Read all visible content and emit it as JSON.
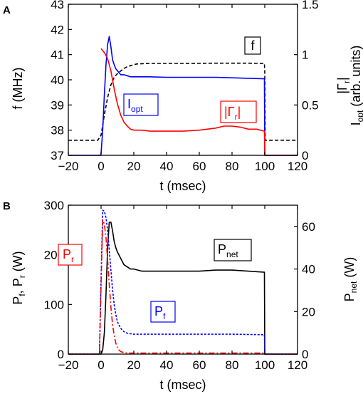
{
  "chart_data": [
    {
      "type": "line",
      "panel_label": "A",
      "xlabel": "t (msec)",
      "ylabel_left": "f (MHz)",
      "ylabel_right": "|Γr|  Iopt (arb. units)",
      "xlim": [
        -20,
        120
      ],
      "ylim_left": [
        37,
        43
      ],
      "ylim_right": [
        0,
        1.5
      ],
      "x_ticks": [
        -20,
        0,
        20,
        40,
        60,
        80,
        100,
        120
      ],
      "y_left_ticks": [
        37,
        38,
        39,
        40,
        41,
        42,
        43
      ],
      "y_right_ticks": [
        0,
        0.5,
        1,
        1.5
      ],
      "grid": false,
      "legend_boxes": [
        {
          "text": "f",
          "color": "#000000",
          "series": "f"
        },
        {
          "text": "Iopt",
          "main": "I",
          "sub": "opt",
          "color": "#0000ff",
          "series": "Iopt"
        },
        {
          "text": "|Γr|",
          "main": "|Γ",
          "sub": "r",
          "tail": "|",
          "color": "#ff0000",
          "series": "Gamma"
        }
      ],
      "series": [
        {
          "key": "f",
          "axis": "left",
          "color": "#000000",
          "style": "dashed",
          "x": [
            -20,
            -2,
            0,
            2,
            4,
            6,
            8,
            10,
            12,
            14,
            16,
            18,
            20,
            22,
            30,
            50,
            70,
            90,
            99.8,
            100,
            100.2,
            120
          ],
          "y": [
            37.6,
            37.6,
            37.8,
            38.6,
            39.3,
            39.8,
            40.1,
            40.25,
            40.35,
            40.45,
            40.52,
            40.56,
            40.6,
            40.63,
            40.65,
            40.65,
            40.66,
            40.66,
            40.65,
            40.3,
            37.6,
            37.6
          ]
        },
        {
          "key": "Iopt",
          "axis": "right",
          "color": "#0000ff",
          "style": "solid",
          "x": [
            -20,
            -0.2,
            0,
            1,
            2,
            3,
            4,
            5,
            6,
            7,
            8,
            9,
            10,
            12,
            14,
            16,
            18,
            20,
            25,
            30,
            40,
            50,
            60,
            70,
            80,
            90,
            99.8,
            100,
            120
          ],
          "y": [
            0,
            0,
            0.02,
            0.25,
            0.6,
            0.9,
            1.1,
            1.18,
            1.08,
            0.95,
            0.9,
            0.86,
            0.84,
            0.8,
            0.8,
            0.79,
            0.78,
            0.78,
            0.78,
            0.78,
            0.775,
            0.775,
            0.775,
            0.775,
            0.77,
            0.765,
            0.76,
            0,
            0
          ]
        },
        {
          "key": "Gamma",
          "axis": "right",
          "color": "#ff0000",
          "style": "solid",
          "x": [
            0,
            2,
            4,
            6,
            8,
            10,
            12,
            14,
            16,
            18,
            20,
            25,
            30,
            40,
            50,
            60,
            70,
            75,
            80,
            85,
            90,
            95,
            99.8,
            100,
            120
          ],
          "y": [
            1.06,
            1.02,
            0.96,
            0.84,
            0.66,
            0.51,
            0.4,
            0.33,
            0.29,
            0.26,
            0.25,
            0.25,
            0.24,
            0.24,
            0.24,
            0.25,
            0.27,
            0.29,
            0.29,
            0.28,
            0.26,
            0.26,
            0.24,
            0,
            0
          ]
        }
      ]
    },
    {
      "type": "line",
      "panel_label": "B",
      "xlabel": "t (msec)",
      "ylabel_left": "Pf, Pr (W)",
      "ylabel_right": "Pnet (W)",
      "xlim": [
        -20,
        120
      ],
      "ylim_left": [
        0,
        300
      ],
      "ylim_right": [
        0,
        70
      ],
      "x_ticks": [
        -20,
        0,
        20,
        40,
        60,
        80,
        100,
        120
      ],
      "y_left_ticks": [
        0,
        100,
        200,
        300
      ],
      "y_right_ticks": [
        0,
        20,
        40,
        60
      ],
      "grid": false,
      "legend_boxes": [
        {
          "text": "Pr",
          "main": "P",
          "sub": "r",
          "color": "#ff0000",
          "series": "Pr"
        },
        {
          "text": "Pnet",
          "main": "P",
          "sub": "net",
          "color": "#000000",
          "series": "Pnet"
        },
        {
          "text": "Pf",
          "main": "P",
          "sub": "f",
          "color": "#0000ff",
          "series": "Pf"
        }
      ],
      "series": [
        {
          "key": "Pnet",
          "axis": "right",
          "color": "#000000",
          "style": "solid",
          "x": [
            -20,
            0,
            1,
            2,
            3,
            4,
            5,
            6,
            7,
            8,
            9,
            10,
            12,
            14,
            16,
            18,
            20,
            25,
            30,
            40,
            50,
            60,
            70,
            80,
            90,
            99.8,
            100,
            120
          ],
          "y": [
            0,
            0,
            2,
            10,
            28,
            50,
            62,
            62,
            58,
            53,
            50,
            48,
            45,
            42,
            41,
            40,
            40,
            39,
            39,
            39,
            39,
            39,
            39.5,
            39.5,
            39,
            38.5,
            0,
            0
          ]
        },
        {
          "key": "Pf",
          "axis": "left",
          "color": "#0000ff",
          "style": "dotted",
          "x": [
            -20,
            -1,
            0,
            1,
            2,
            3,
            4,
            5,
            6,
            7,
            8,
            9,
            10,
            12,
            14,
            16,
            18,
            20,
            25,
            30,
            40,
            60,
            80,
            99.8,
            100,
            120
          ],
          "y": [
            0,
            0,
            150,
            290,
            288,
            275,
            250,
            210,
            170,
            130,
            100,
            80,
            65,
            52,
            45,
            42,
            41,
            40,
            40,
            40,
            40,
            40,
            40,
            39,
            0,
            0
          ]
        },
        {
          "key": "Pr",
          "axis": "left",
          "color": "#ff0000",
          "style": "dashdot",
          "x": [
            -20,
            -1,
            0,
            1,
            2,
            3,
            4,
            5,
            6,
            7,
            8,
            9,
            10,
            11,
            12,
            14,
            16,
            20,
            30,
            60,
            99.8,
            100,
            120
          ],
          "y": [
            0,
            0,
            140,
            270,
            262,
            235,
            190,
            140,
            95,
            60,
            38,
            22,
            13,
            8,
            5,
            3,
            2,
            2,
            2,
            2,
            2,
            0,
            0
          ]
        }
      ]
    }
  ]
}
